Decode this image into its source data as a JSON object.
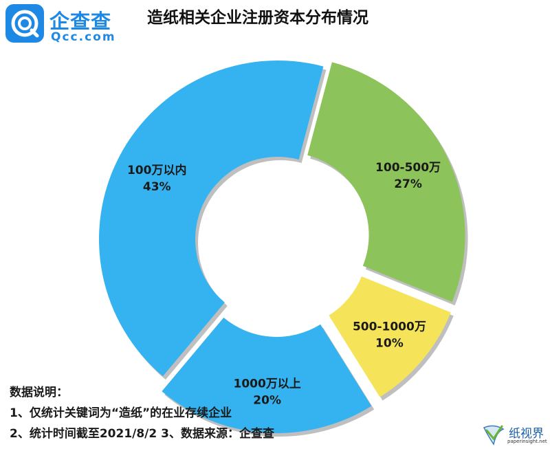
{
  "logo": {
    "name": "企查查",
    "domain": "Qcc.com"
  },
  "notes": {
    "heading": "数据说明：",
    "line1": "1、仅统计关键词为“造纸”的在业存续企业",
    "line2": "2、统计时间截至2021/8/2   3、数据来源：企查查"
  },
  "watermark": {
    "name": "纸视界",
    "domain": "paperinsight.net"
  },
  "chart_data": {
    "type": "pie",
    "title": "造纸相关企业注册资本分布情况",
    "donut": true,
    "exploded": true,
    "segments": [
      {
        "name": "100万以内",
        "value": 43,
        "label": "43%",
        "color": "#35b3f0"
      },
      {
        "name": "100-500万",
        "value": 27,
        "label": "27%",
        "color": "#8cc35a"
      },
      {
        "name": "500-1000万",
        "value": 10,
        "label": "10%",
        "color": "#f5e45a"
      },
      {
        "name": "1000万以上",
        "value": 20,
        "label": "20%",
        "color": "#35b3f0"
      }
    ]
  }
}
